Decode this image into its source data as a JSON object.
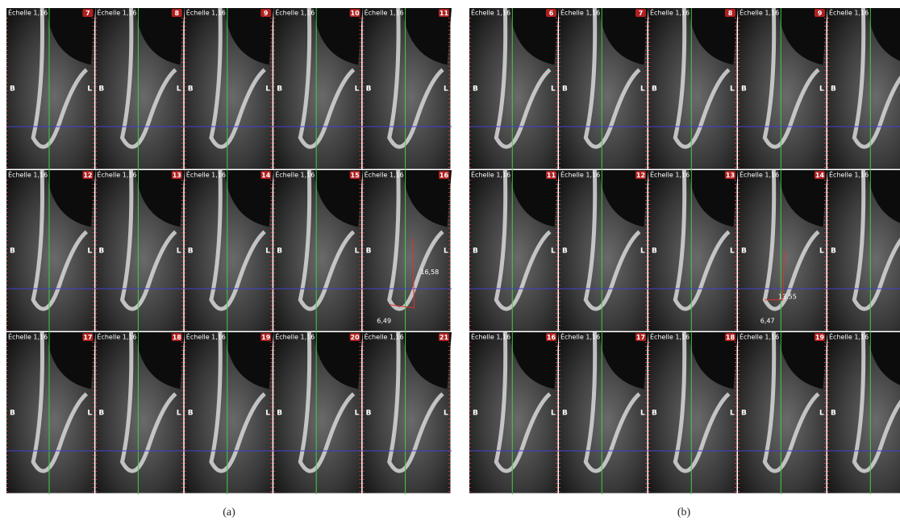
{
  "panels": [
    {
      "caption": "(a)",
      "tiles": [
        {
          "scale": "Échelle 1,16",
          "slice": "7",
          "left": "B",
          "right": "L"
        },
        {
          "scale": "Échelle 1,16",
          "slice": "8",
          "left": "B",
          "right": "L"
        },
        {
          "scale": "Échelle 1,16",
          "slice": "9",
          "left": "B",
          "right": "L"
        },
        {
          "scale": "Échelle 1,16",
          "slice": "10",
          "left": "B",
          "right": "L"
        },
        {
          "scale": "Échelle 1,16",
          "slice": "11",
          "left": "B",
          "right": "L"
        },
        {
          "scale": "Échelle 1,16",
          "slice": "12",
          "left": "B",
          "right": "L"
        },
        {
          "scale": "Échelle 1,16",
          "slice": "13",
          "left": "B",
          "right": "L"
        },
        {
          "scale": "Échelle 1,16",
          "slice": "14",
          "left": "B",
          "right": "L"
        },
        {
          "scale": "Échelle 1,16",
          "slice": "15",
          "left": "B",
          "right": "L"
        },
        {
          "scale": "Échelle 1,16",
          "slice": "16",
          "left": "B",
          "right": "L",
          "measurements": [
            "16,58",
            "6,49"
          ]
        },
        {
          "scale": "Échelle 1,16",
          "slice": "17",
          "left": "B",
          "right": "L"
        },
        {
          "scale": "Échelle 1,16",
          "slice": "18",
          "left": "B",
          "right": "L"
        },
        {
          "scale": "Échelle 1,16",
          "slice": "19",
          "left": "B",
          "right": "L"
        },
        {
          "scale": "Échelle 1,16",
          "slice": "20",
          "left": "B",
          "right": "L"
        },
        {
          "scale": "Échelle 1,16",
          "slice": "21",
          "left": "B",
          "right": "L"
        }
      ]
    },
    {
      "caption": "(b)",
      "tiles": [
        {
          "scale": "Échelle 1,16",
          "slice": "6",
          "left": "B",
          "right": "L"
        },
        {
          "scale": "Échelle 1,16",
          "slice": "7",
          "left": "B",
          "right": "L"
        },
        {
          "scale": "Échelle 1,16",
          "slice": "8",
          "left": "B",
          "right": "L"
        },
        {
          "scale": "Échelle 1,16",
          "slice": "9",
          "left": "B",
          "right": "L"
        },
        {
          "scale": "Échelle 1,16",
          "left": "B"
        },
        {
          "scale": "Échelle 1,16",
          "slice": "11",
          "left": "B",
          "right": "L"
        },
        {
          "scale": "Échelle 1,16",
          "slice": "12",
          "left": "B",
          "right": "L"
        },
        {
          "scale": "Échelle 1,16",
          "slice": "13",
          "left": "B",
          "right": "L"
        },
        {
          "scale": "Échelle 1,16",
          "slice": "14",
          "left": "B",
          "right": "L",
          "measurements": [
            "13,55",
            "6,47"
          ]
        },
        {
          "scale": "Échelle 1,16",
          "left": "B"
        },
        {
          "scale": "Échelle 1,16",
          "slice": "16",
          "left": "B",
          "right": "L"
        },
        {
          "scale": "Échelle 1,16",
          "slice": "17",
          "left": "B",
          "right": "L"
        },
        {
          "scale": "Échelle 1,16",
          "slice": "18",
          "left": "B",
          "right": "L"
        },
        {
          "scale": "Échelle 1,16",
          "slice": "19",
          "left": "B",
          "right": "L"
        },
        {
          "scale": "Échelle 1,16",
          "left": "B"
        }
      ]
    }
  ]
}
